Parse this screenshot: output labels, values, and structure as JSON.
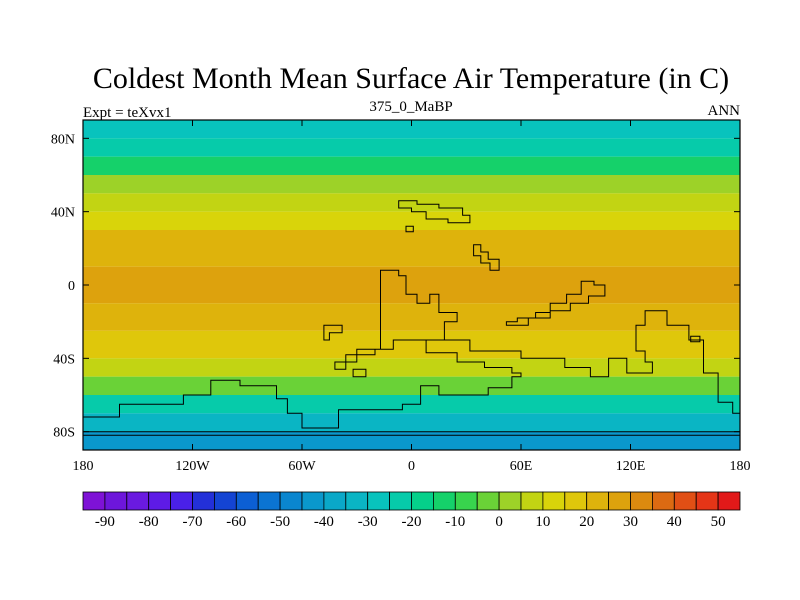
{
  "title": "Coldest Month Mean Surface Air Temperature (in C)",
  "left_string": "Expt = teXvx1",
  "center_string": "375_0_MaBP",
  "right_string": "ANN",
  "map": {
    "projection": "cylindrical-equidistant",
    "lon_range": [
      -180,
      180
    ],
    "lat_range": [
      -90,
      90
    ],
    "lon_ticks": [
      {
        "value": -180,
        "label": "180"
      },
      {
        "value": -120,
        "label": "120W"
      },
      {
        "value": -60,
        "label": "60W"
      },
      {
        "value": 0,
        "label": "0"
      },
      {
        "value": 60,
        "label": "60E"
      },
      {
        "value": 120,
        "label": "120E"
      },
      {
        "value": 180,
        "label": "180"
      }
    ],
    "lat_ticks": [
      {
        "value": 80,
        "label": "80N"
      },
      {
        "value": 40,
        "label": "40N"
      },
      {
        "value": 0,
        "label": "0"
      },
      {
        "value": -40,
        "label": "40S"
      },
      {
        "value": -80,
        "label": "80S"
      }
    ],
    "field_bands": [
      {
        "lat": [
          80,
          90
        ],
        "temp": -30
      },
      {
        "lat": [
          70,
          80
        ],
        "temp": -25
      },
      {
        "lat": [
          60,
          70
        ],
        "temp": -12
      },
      {
        "lat": [
          50,
          60
        ],
        "temp": 0
      },
      {
        "lat": [
          40,
          50
        ],
        "temp": 8
      },
      {
        "lat": [
          30,
          40
        ],
        "temp": 14
      },
      {
        "lat": [
          10,
          30
        ],
        "temp": 22
      },
      {
        "lat": [
          -10,
          10
        ],
        "temp": 26
      },
      {
        "lat": [
          -25,
          -10
        ],
        "temp": 22
      },
      {
        "lat": [
          -40,
          -25
        ],
        "temp": 16
      },
      {
        "lat": [
          -50,
          -40
        ],
        "temp": 8
      },
      {
        "lat": [
          -60,
          -50
        ],
        "temp": -5
      },
      {
        "lat": [
          -70,
          -60
        ],
        "temp": -22
      },
      {
        "lat": [
          -80,
          -70
        ],
        "temp": -35
      },
      {
        "lat": [
          -90,
          -80
        ],
        "temp": -45
      }
    ],
    "coastlines": [
      {
        "name": "northern-island",
        "points": [
          [
            -7,
            46
          ],
          [
            3,
            46
          ],
          [
            3,
            44
          ],
          [
            15,
            44
          ],
          [
            15,
            42
          ],
          [
            28,
            42
          ],
          [
            28,
            38
          ],
          [
            32,
            38
          ],
          [
            32,
            34
          ],
          [
            20,
            34
          ],
          [
            20,
            36
          ],
          [
            8,
            36
          ],
          [
            8,
            40
          ],
          [
            0,
            40
          ],
          [
            0,
            42
          ],
          [
            -7,
            42
          ]
        ]
      },
      {
        "name": "small-island-north",
        "points": [
          [
            -3,
            32
          ],
          [
            1,
            32
          ],
          [
            1,
            29
          ],
          [
            -3,
            29
          ]
        ]
      },
      {
        "name": "eastern-ridge",
        "points": [
          [
            34,
            22
          ],
          [
            38,
            22
          ],
          [
            38,
            18
          ],
          [
            42,
            18
          ],
          [
            42,
            14
          ],
          [
            48,
            14
          ],
          [
            48,
            8
          ],
          [
            43,
            8
          ],
          [
            43,
            12
          ],
          [
            38,
            12
          ],
          [
            38,
            16
          ],
          [
            34,
            16
          ]
        ]
      },
      {
        "name": "east-equatorial",
        "points": [
          [
            52,
            -20
          ],
          [
            58,
            -20
          ],
          [
            58,
            -18
          ],
          [
            68,
            -18
          ],
          [
            68,
            -15
          ],
          [
            76,
            -15
          ],
          [
            76,
            -10
          ],
          [
            85,
            -10
          ],
          [
            85,
            -5
          ],
          [
            93,
            -5
          ],
          [
            93,
            2
          ],
          [
            100,
            2
          ],
          [
            100,
            0
          ],
          [
            106,
            0
          ],
          [
            106,
            -6
          ],
          [
            97,
            -6
          ],
          [
            97,
            -10
          ],
          [
            87,
            -10
          ],
          [
            87,
            -14
          ],
          [
            76,
            -14
          ],
          [
            76,
            -18
          ],
          [
            64,
            -18
          ],
          [
            64,
            -22
          ],
          [
            52,
            -22
          ]
        ]
      },
      {
        "name": "gondwana",
        "points": [
          [
            -17,
            8
          ],
          [
            -7,
            8
          ],
          [
            -7,
            5
          ],
          [
            -3,
            5
          ],
          [
            -3,
            -5
          ],
          [
            3,
            -5
          ],
          [
            3,
            -10
          ],
          [
            10,
            -10
          ],
          [
            10,
            -5
          ],
          [
            15,
            -5
          ],
          [
            15,
            -15
          ],
          [
            25,
            -15
          ],
          [
            25,
            -20
          ],
          [
            18,
            -20
          ],
          [
            18,
            -30
          ],
          [
            8,
            -30
          ],
          [
            8,
            -37
          ],
          [
            25,
            -37
          ],
          [
            25,
            -42
          ],
          [
            40,
            -42
          ],
          [
            40,
            -45
          ],
          [
            55,
            -45
          ],
          [
            55,
            -48
          ],
          [
            60,
            -48
          ],
          [
            60,
            -50
          ],
          [
            55,
            -50
          ],
          [
            55,
            -56
          ],
          [
            42,
            -56
          ],
          [
            42,
            -60
          ],
          [
            15,
            -60
          ],
          [
            15,
            -55
          ],
          [
            5,
            -55
          ],
          [
            5,
            -65
          ],
          [
            -5,
            -65
          ],
          [
            -5,
            -68
          ],
          [
            -40,
            -68
          ],
          [
            -40,
            -78
          ],
          [
            -60,
            -78
          ],
          [
            -60,
            -70
          ],
          [
            -68,
            -70
          ],
          [
            -68,
            -62
          ],
          [
            -74,
            -62
          ],
          [
            -74,
            -55
          ],
          [
            -94,
            -55
          ],
          [
            -94,
            -52
          ],
          [
            -110,
            -52
          ],
          [
            -110,
            -60
          ],
          [
            -125,
            -60
          ],
          [
            -125,
            -65
          ],
          [
            -160,
            -65
          ],
          [
            -160,
            -72
          ],
          [
            -180,
            -72
          ],
          [
            -180,
            -82
          ],
          [
            180,
            -82
          ],
          [
            180,
            -70
          ],
          [
            176,
            -70
          ],
          [
            176,
            -64
          ],
          [
            168,
            -64
          ],
          [
            168,
            -48
          ],
          [
            160,
            -48
          ],
          [
            160,
            -30
          ],
          [
            152,
            -30
          ],
          [
            152,
            -22
          ],
          [
            140,
            -22
          ],
          [
            140,
            -14
          ],
          [
            128,
            -14
          ],
          [
            128,
            -22
          ],
          [
            123,
            -22
          ],
          [
            123,
            -36
          ],
          [
            128,
            -36
          ],
          [
            128,
            -42
          ],
          [
            132,
            -42
          ],
          [
            132,
            -48
          ],
          [
            118,
            -48
          ],
          [
            118,
            -40
          ],
          [
            108,
            -40
          ],
          [
            108,
            -50
          ],
          [
            98,
            -50
          ],
          [
            98,
            -45
          ],
          [
            84,
            -45
          ],
          [
            84,
            -40
          ],
          [
            60,
            -40
          ],
          [
            60,
            -36
          ],
          [
            32,
            -36
          ],
          [
            32,
            -30
          ],
          [
            -10,
            -30
          ],
          [
            -10,
            -35
          ],
          [
            -20,
            -35
          ],
          [
            -20,
            -38
          ],
          [
            -36,
            -38
          ],
          [
            -36,
            -46
          ],
          [
            -42,
            -46
          ],
          [
            -42,
            -42
          ],
          [
            -30,
            -42
          ],
          [
            -30,
            -35
          ],
          [
            -17,
            -35
          ]
        ]
      },
      {
        "name": "western-fragment",
        "points": [
          [
            -48,
            -22
          ],
          [
            -38,
            -22
          ],
          [
            -38,
            -26
          ],
          [
            -45,
            -26
          ],
          [
            -45,
            -30
          ],
          [
            -48,
            -30
          ]
        ]
      },
      {
        "name": "antarctic-inner",
        "points": [
          [
            -180,
            -80
          ],
          [
            180,
            -80
          ]
        ]
      },
      {
        "name": "far-east-islet",
        "points": [
          [
            153,
            -28
          ],
          [
            158,
            -28
          ],
          [
            158,
            -31
          ],
          [
            153,
            -31
          ]
        ]
      },
      {
        "name": "nw-fragment",
        "points": [
          [
            -32,
            -46
          ],
          [
            -25,
            -46
          ],
          [
            -25,
            -50
          ],
          [
            -32,
            -50
          ]
        ]
      }
    ]
  },
  "colorbar": {
    "levels": [
      -95,
      -90,
      -85,
      -80,
      -75,
      -70,
      -65,
      -60,
      -55,
      -50,
      -45,
      -40,
      -35,
      -30,
      -25,
      -20,
      -15,
      -10,
      -5,
      0,
      5,
      10,
      15,
      20,
      25,
      30,
      35,
      40,
      45,
      50,
      55
    ],
    "colors": [
      "#7e12d6",
      "#6d16db",
      "#6a1ae0",
      "#5e1be6",
      "#4a20e8",
      "#2330d8",
      "#1444d3",
      "#0c5fd4",
      "#0b74d2",
      "#0a86cf",
      "#0a98cc",
      "#0aa8c8",
      "#0ab5c4",
      "#08c3bd",
      "#06cbaa",
      "#05d08a",
      "#15d16a",
      "#38d44d",
      "#6ad237",
      "#9dd228",
      "#c2d413",
      "#d9d40a",
      "#dfc70b",
      "#deb30c",
      "#dda20d",
      "#dc8a0f",
      "#dc6a12",
      "#e14f15",
      "#e53517",
      "#e21919"
    ],
    "tick_labels": [
      "-90",
      "-80",
      "-70",
      "-60",
      "-50",
      "-40",
      "-30",
      "-20",
      "-10",
      "0",
      "10",
      "20",
      "30",
      "40",
      "50"
    ]
  }
}
